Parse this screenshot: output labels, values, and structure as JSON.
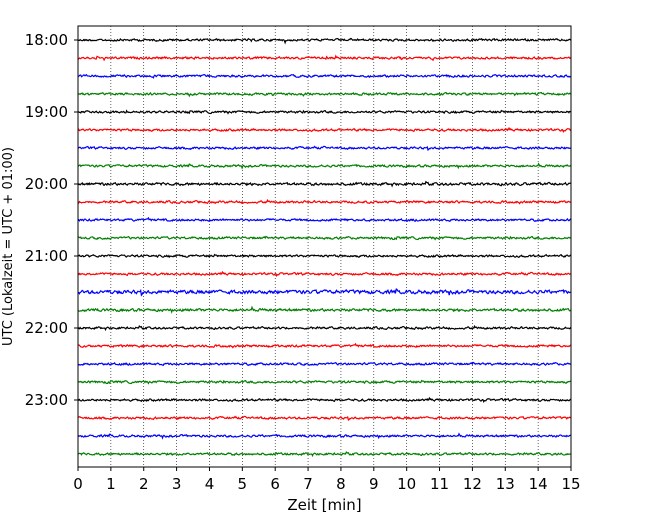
{
  "chart_data": {
    "type": "line",
    "title": "",
    "xlabel": "Zeit  [min]",
    "ylabel": "UTC (Lokalzeit = UTC + 01:00)",
    "xlim": [
      0,
      15
    ],
    "x_ticks": [
      0,
      1,
      2,
      3,
      4,
      5,
      6,
      7,
      8,
      9,
      10,
      11,
      12,
      13,
      14,
      15
    ],
    "y_tick_labels": [
      "18:00",
      "19:00",
      "20:00",
      "21:00",
      "22:00",
      "23:00"
    ],
    "trace_interval_min": 15,
    "grid": "vertical dotted",
    "colors": [
      "#000000",
      "#ff0000",
      "#0000ff",
      "#008000"
    ],
    "series": [
      {
        "start": "18:00",
        "amplitude": 0.5
      },
      {
        "start": "18:15",
        "amplitude": 0.5
      },
      {
        "start": "18:30",
        "amplitude": 0.5
      },
      {
        "start": "18:45",
        "amplitude": 0.5
      },
      {
        "start": "19:00",
        "amplitude": 0.5
      },
      {
        "start": "19:15",
        "amplitude": 0.5
      },
      {
        "start": "19:30",
        "amplitude": 0.5
      },
      {
        "start": "19:45",
        "amplitude": 0.5
      },
      {
        "start": "20:00",
        "amplitude": 0.6
      },
      {
        "start": "20:15",
        "amplitude": 0.5
      },
      {
        "start": "20:30",
        "amplitude": 0.5
      },
      {
        "start": "20:45",
        "amplitude": 0.5
      },
      {
        "start": "21:00",
        "amplitude": 0.5
      },
      {
        "start": "21:15",
        "amplitude": 0.5
      },
      {
        "start": "21:30",
        "amplitude": 0.8
      },
      {
        "start": "21:45",
        "amplitude": 0.6
      },
      {
        "start": "22:00",
        "amplitude": 0.5
      },
      {
        "start": "22:15",
        "amplitude": 0.5
      },
      {
        "start": "22:30",
        "amplitude": 0.5
      },
      {
        "start": "22:45",
        "amplitude": 0.5
      },
      {
        "start": "23:00",
        "amplitude": 0.5
      },
      {
        "start": "23:15",
        "amplitude": 0.5
      },
      {
        "start": "23:30",
        "amplitude": 0.5
      },
      {
        "start": "23:45",
        "amplitude": 0.5
      }
    ]
  }
}
